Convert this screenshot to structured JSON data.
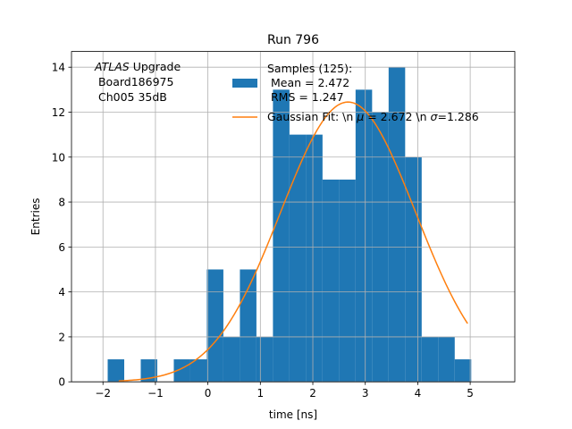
{
  "chart_data": {
    "type": "bar",
    "title": "Run 796",
    "xlabel": "time [ns]",
    "ylabel": "Entries",
    "xlim": [
      -2.6,
      5.85
    ],
    "ylim": [
      0,
      14.7
    ],
    "xticks": [
      -2,
      -1,
      0,
      1,
      2,
      3,
      4,
      5
    ],
    "yticks": [
      0,
      2,
      4,
      6,
      8,
      10,
      12,
      14
    ],
    "grid": true,
    "annotation": {
      "italic": "ATLAS",
      "rest": " Upgrade",
      "line2": " Board186975",
      "line3": " Ch005 35dB"
    },
    "histogram": {
      "name": "Samples (125):",
      "legend_lines": [
        "Samples (125):",
        " Mean = 2.472",
        " RMS = 1.247"
      ],
      "color": "#1f77b4",
      "bins": [
        {
          "x0": -1.91,
          "x1": -1.595,
          "count": 1
        },
        {
          "x0": -1.595,
          "x1": -1.28,
          "count": 0
        },
        {
          "x0": -1.28,
          "x1": -0.965,
          "count": 1
        },
        {
          "x0": -0.965,
          "x1": -0.65,
          "count": 0
        },
        {
          "x0": -0.65,
          "x1": -0.335,
          "count": 1
        },
        {
          "x0": -0.335,
          "x1": -0.02,
          "count": 1
        },
        {
          "x0": -0.02,
          "x1": 0.295,
          "count": 5
        },
        {
          "x0": 0.295,
          "x1": 0.61,
          "count": 2
        },
        {
          "x0": 0.61,
          "x1": 0.925,
          "count": 5
        },
        {
          "x0": 0.925,
          "x1": 1.24,
          "count": 2
        },
        {
          "x0": 1.24,
          "x1": 1.555,
          "count": 13
        },
        {
          "x0": 1.555,
          "x1": 1.87,
          "count": 11
        },
        {
          "x0": 1.87,
          "x1": 2.185,
          "count": 11
        },
        {
          "x0": 2.185,
          "x1": 2.5,
          "count": 9
        },
        {
          "x0": 2.5,
          "x1": 2.815,
          "count": 9
        },
        {
          "x0": 2.815,
          "x1": 3.13,
          "count": 13
        },
        {
          "x0": 3.13,
          "x1": 3.445,
          "count": 12
        },
        {
          "x0": 3.445,
          "x1": 3.76,
          "count": 14
        },
        {
          "x0": 3.76,
          "x1": 4.075,
          "count": 10
        },
        {
          "x0": 4.075,
          "x1": 4.39,
          "count": 2
        },
        {
          "x0": 4.39,
          "x1": 4.705,
          "count": 2
        },
        {
          "x0": 4.705,
          "x1": 5.02,
          "count": 1
        }
      ]
    },
    "fit": {
      "name": "Gaussian Fit: \\n $\\mu$ = 2.672 \\n $\\sigma$=1.286",
      "legend_parts": [
        "Gaussian Fit: \\n ",
        "μ",
        " = 2.672 \\n ",
        "σ",
        "=1.286"
      ],
      "color": "#ff7f0e",
      "mu": 2.672,
      "sigma": 1.286,
      "amplitude": 12.45,
      "x_range": [
        -1.7,
        4.95
      ]
    }
  }
}
